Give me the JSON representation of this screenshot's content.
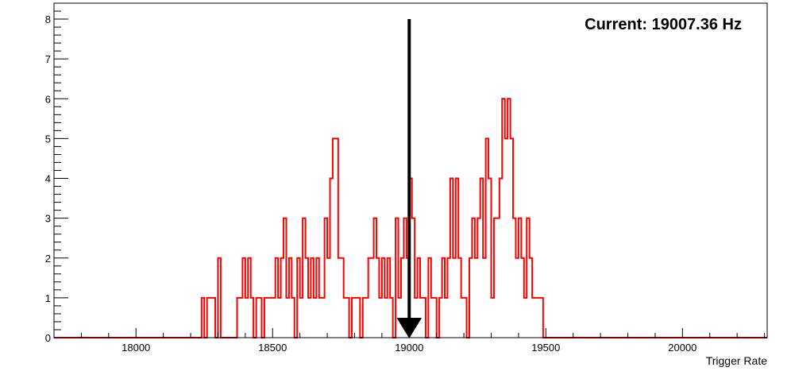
{
  "chart_data": {
    "type": "histogram",
    "title": "",
    "xlabel": "Trigger Rate",
    "ylabel": "",
    "xlim": [
      17700,
      20310
    ],
    "ylim": [
      0,
      8.4
    ],
    "xticks": [
      18000,
      18500,
      19000,
      19500,
      20000
    ],
    "yticks": [
      0,
      1,
      2,
      3,
      4,
      5,
      6,
      7,
      8
    ],
    "bin_width": 10,
    "series": [
      {
        "color": "#ff0000",
        "bins": [
          [
            18240,
            1
          ],
          [
            18250,
            0
          ],
          [
            18260,
            1
          ],
          [
            18270,
            1
          ],
          [
            18280,
            1
          ],
          [
            18290,
            0
          ],
          [
            18300,
            2
          ],
          [
            18310,
            0
          ],
          [
            18320,
            0
          ],
          [
            18330,
            0
          ],
          [
            18340,
            0
          ],
          [
            18350,
            0
          ],
          [
            18360,
            0
          ],
          [
            18370,
            1
          ],
          [
            18380,
            1
          ],
          [
            18390,
            2
          ],
          [
            18400,
            1
          ],
          [
            18410,
            2
          ],
          [
            18420,
            1
          ],
          [
            18430,
            0
          ],
          [
            18440,
            1
          ],
          [
            18450,
            1
          ],
          [
            18460,
            0
          ],
          [
            18470,
            1
          ],
          [
            18480,
            1
          ],
          [
            18490,
            1
          ],
          [
            18500,
            1
          ],
          [
            18510,
            2
          ],
          [
            18520,
            1
          ],
          [
            18530,
            2
          ],
          [
            18540,
            3
          ],
          [
            18550,
            1
          ],
          [
            18560,
            2
          ],
          [
            18570,
            1
          ],
          [
            18580,
            0
          ],
          [
            18590,
            2
          ],
          [
            18600,
            1
          ],
          [
            18610,
            3
          ],
          [
            18620,
            2
          ],
          [
            18630,
            1
          ],
          [
            18640,
            2
          ],
          [
            18650,
            1
          ],
          [
            18660,
            2
          ],
          [
            18670,
            1
          ],
          [
            18680,
            1
          ],
          [
            18690,
            3
          ],
          [
            18700,
            2
          ],
          [
            18710,
            4
          ],
          [
            18720,
            5
          ],
          [
            18730,
            5
          ],
          [
            18740,
            2
          ],
          [
            18750,
            2
          ],
          [
            18760,
            1
          ],
          [
            18770,
            1
          ],
          [
            18780,
            0
          ],
          [
            18790,
            1
          ],
          [
            18800,
            1
          ],
          [
            18810,
            1
          ],
          [
            18820,
            0
          ],
          [
            18830,
            1
          ],
          [
            18840,
            1
          ],
          [
            18850,
            2
          ],
          [
            18860,
            2
          ],
          [
            18870,
            3
          ],
          [
            18880,
            2
          ],
          [
            18890,
            1
          ],
          [
            18900,
            2
          ],
          [
            18910,
            1
          ],
          [
            18920,
            2
          ],
          [
            18930,
            1
          ],
          [
            18940,
            0
          ],
          [
            18950,
            3
          ],
          [
            18960,
            1
          ],
          [
            18970,
            2
          ],
          [
            18980,
            3
          ],
          [
            18990,
            2
          ],
          [
            19000,
            4
          ],
          [
            19010,
            3
          ],
          [
            19020,
            1
          ],
          [
            19030,
            2
          ],
          [
            19040,
            1
          ],
          [
            19050,
            1
          ],
          [
            19060,
            0
          ],
          [
            19070,
            2
          ],
          [
            19080,
            1
          ],
          [
            19090,
            1
          ],
          [
            19100,
            0
          ],
          [
            19110,
            1
          ],
          [
            19120,
            2
          ],
          [
            19130,
            1
          ],
          [
            19140,
            2
          ],
          [
            19150,
            4
          ],
          [
            19160,
            2
          ],
          [
            19170,
            4
          ],
          [
            19180,
            2
          ],
          [
            19190,
            1
          ],
          [
            19200,
            1
          ],
          [
            19210,
            0
          ],
          [
            19220,
            2
          ],
          [
            19230,
            3
          ],
          [
            19240,
            2
          ],
          [
            19250,
            3
          ],
          [
            19260,
            4
          ],
          [
            19270,
            2
          ],
          [
            19280,
            5
          ],
          [
            19290,
            4
          ],
          [
            19300,
            1
          ],
          [
            19310,
            3
          ],
          [
            19320,
            3
          ],
          [
            19330,
            4
          ],
          [
            19340,
            6
          ],
          [
            19350,
            5
          ],
          [
            19360,
            6
          ],
          [
            19370,
            5
          ],
          [
            19380,
            3
          ],
          [
            19390,
            2
          ],
          [
            19400,
            3
          ],
          [
            19410,
            2
          ],
          [
            19420,
            1
          ],
          [
            19430,
            3
          ],
          [
            19440,
            2
          ],
          [
            19450,
            1
          ],
          [
            19460,
            1
          ],
          [
            19470,
            1
          ],
          [
            19480,
            1
          ],
          [
            19490,
            0
          ]
        ]
      }
    ],
    "marker": {
      "x": 19000,
      "y_top": 8,
      "color": "#000000"
    },
    "annotation": "Current: 19007.36 Hz"
  }
}
